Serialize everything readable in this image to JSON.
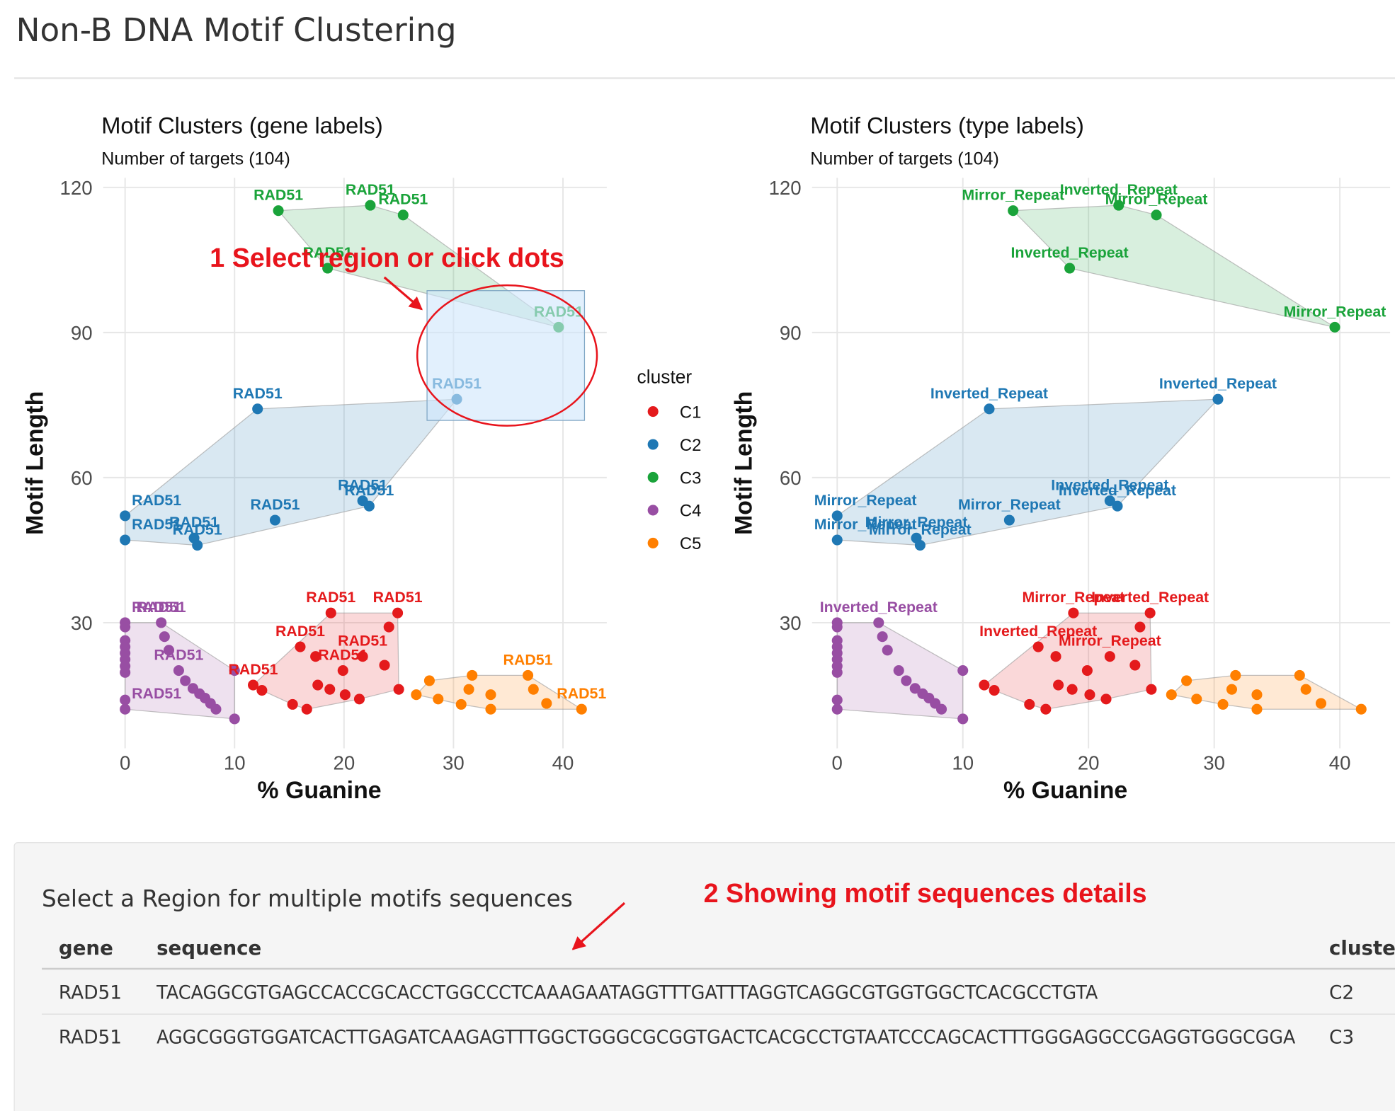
{
  "title": "Non-B DNA Motif Clustering",
  "chart_data": [
    {
      "type": "scatter",
      "title": "Motif Clusters (gene labels)",
      "subtitle": "Number of targets (104)",
      "xlabel": "% Guanine",
      "ylabel": "Motif Length",
      "xlim": [
        -2,
        44
      ],
      "ylim": [
        4,
        122
      ],
      "xticks": [
        0,
        10,
        20,
        30,
        40
      ],
      "yticks": [
        30,
        60,
        90,
        120
      ],
      "grid": true,
      "hull": true,
      "legend_title": "cluster",
      "series": [
        {
          "name": "C1",
          "color": "#e41a1c",
          "x": [
            11.7,
            12.5,
            15.3,
            16.6,
            16.0,
            17.4,
            17.6,
            18.7,
            18.8,
            19.9,
            20.1,
            21.4,
            21.7,
            23.7,
            24.1,
            24.9,
            25.0
          ],
          "values": [
            17.1,
            16.0,
            13.1,
            12.1,
            25.0,
            23.0,
            17.1,
            16.2,
            32.0,
            20.1,
            15.1,
            14.2,
            23.0,
            21.2,
            29.1,
            32.0,
            16.2
          ],
          "labels": [
            "RAD51",
            null,
            null,
            null,
            "RAD51",
            null,
            null,
            null,
            "RAD51",
            "RAD51",
            null,
            null,
            "RAD51",
            null,
            null,
            "RAD51",
            null
          ]
        },
        {
          "name": "C2",
          "color": "#1f78b4",
          "x": [
            12.1,
            30.3,
            0,
            0,
            6.3,
            6.6,
            13.7,
            21.7,
            22.3
          ],
          "values": [
            74.2,
            76.2,
            52.1,
            47.1,
            47.5,
            46.0,
            51.2,
            55.2,
            54.1
          ],
          "labels": [
            "RAD51",
            "RAD51",
            "RAD51",
            "RAD51",
            "RAD51",
            "RAD51",
            "RAD51",
            "RAD51",
            "RAD51"
          ]
        },
        {
          "name": "C3",
          "color": "#1aa33a",
          "x": [
            14.0,
            22.4,
            25.4,
            18.5,
            39.6
          ],
          "values": [
            115.2,
            116.3,
            114.3,
            103.3,
            91.1
          ],
          "labels": [
            "RAD51",
            "RAD51",
            "RAD51",
            "RAD51",
            "RAD51"
          ]
        },
        {
          "name": "C4",
          "color": "#984ea3",
          "x": [
            0,
            0,
            0,
            0,
            0,
            0,
            0,
            0,
            0,
            0,
            3.3,
            3.6,
            4.0,
            4.9,
            5.5,
            6.2,
            6.8,
            7.3,
            7.8,
            8.3,
            10.0,
            10.0
          ],
          "values": [
            30,
            29.1,
            26.3,
            25.0,
            23.7,
            22.4,
            21.0,
            19.7,
            14.0,
            12.1,
            30,
            27.1,
            24.3,
            20.1,
            18.0,
            16.4,
            15.3,
            14.4,
            13.3,
            12.1,
            20.1,
            10.1
          ],
          "labels": [
            "RAD51",
            null,
            null,
            null,
            null,
            null,
            null,
            null,
            null,
            "RAD51",
            "RAD51",
            null,
            null,
            "RAD51",
            null,
            null,
            null,
            null,
            null,
            null,
            null,
            null
          ]
        },
        {
          "name": "C5",
          "color": "#ff7f00",
          "x": [
            26.6,
            27.8,
            28.6,
            30.7,
            31.4,
            31.7,
            33.4,
            33.4,
            36.8,
            37.3,
            38.5,
            41.7
          ],
          "values": [
            15.1,
            18.0,
            14.2,
            13.1,
            16.2,
            19.1,
            15.1,
            12.1,
            19.1,
            16.2,
            13.3,
            12.1
          ],
          "labels": [
            null,
            null,
            null,
            null,
            null,
            null,
            null,
            null,
            "RAD51",
            null,
            null,
            "RAD51"
          ]
        }
      ]
    },
    {
      "type": "scatter",
      "title": "Motif Clusters (type labels)",
      "subtitle": "Number of targets (104)",
      "xlabel": "% Guanine",
      "ylabel": "Motif Length",
      "xlim": [
        -2,
        44
      ],
      "ylim": [
        4,
        122
      ],
      "xticks": [
        0,
        10,
        20,
        30,
        40
      ],
      "yticks": [
        30,
        60,
        90,
        120
      ],
      "grid": true,
      "hull": true,
      "series": [
        {
          "name": "C1",
          "color": "#e41a1c",
          "x": [
            11.7,
            12.5,
            15.3,
            16.6,
            16.0,
            17.4,
            17.6,
            18.7,
            18.8,
            19.9,
            20.1,
            21.4,
            21.7,
            23.7,
            24.1,
            24.9,
            25.0
          ],
          "values": [
            17.1,
            16.0,
            13.1,
            12.1,
            25.0,
            23.0,
            17.1,
            16.2,
            32.0,
            20.1,
            15.1,
            14.2,
            23.0,
            21.2,
            29.1,
            32.0,
            16.2
          ],
          "labels": [
            null,
            null,
            null,
            null,
            "Inverted_Repeat",
            null,
            null,
            null,
            "Mirror_Repeat",
            null,
            null,
            null,
            "Mirror_Repeat",
            null,
            null,
            "Inverted_Repeat",
            null
          ]
        },
        {
          "name": "C2",
          "color": "#1f78b4",
          "x": [
            12.1,
            30.3,
            0,
            0,
            6.3,
            6.6,
            13.7,
            21.7,
            22.3
          ],
          "values": [
            74.2,
            76.2,
            52.1,
            47.1,
            47.5,
            46.0,
            51.2,
            55.2,
            54.1
          ],
          "labels": [
            "Inverted_Repeat",
            "Inverted_Repeat",
            "Mirror_Repeat",
            "Mirror_Repeat",
            "Mirror_Repeat",
            "Mirror_Repeat",
            "Mirror_Repeat",
            "Inverted_Repeat",
            "Inverted_Repeat"
          ]
        },
        {
          "name": "C3",
          "color": "#1aa33a",
          "x": [
            14.0,
            22.4,
            25.4,
            18.5,
            39.6
          ],
          "values": [
            115.2,
            116.3,
            114.3,
            103.3,
            91.1
          ],
          "labels": [
            "Mirror_Repeat",
            "Inverted_Repeat",
            "Mirror_Repeat",
            "Inverted_Repeat",
            "Mirror_Repeat"
          ]
        },
        {
          "name": "C4",
          "color": "#984ea3",
          "x": [
            0,
            0,
            0,
            0,
            0,
            0,
            0,
            0,
            0,
            0,
            3.3,
            3.6,
            4.0,
            4.9,
            5.5,
            6.2,
            6.8,
            7.3,
            7.8,
            8.3,
            10.0,
            10.0
          ],
          "values": [
            30,
            29.1,
            26.3,
            25.0,
            23.7,
            22.4,
            21.0,
            19.7,
            14.0,
            12.1,
            30,
            27.1,
            24.3,
            20.1,
            18.0,
            16.4,
            15.3,
            14.4,
            13.3,
            12.1,
            20.1,
            10.1
          ],
          "labels": [
            null,
            null,
            null,
            null,
            null,
            null,
            null,
            null,
            null,
            null,
            "Inverted_Repeat",
            null,
            null,
            null,
            null,
            null,
            null,
            null,
            null,
            null,
            null,
            null
          ]
        },
        {
          "name": "C5",
          "color": "#ff7f00",
          "x": [
            26.6,
            27.8,
            28.6,
            30.7,
            31.4,
            31.7,
            33.4,
            33.4,
            36.8,
            37.3,
            38.5,
            41.7
          ],
          "values": [
            15.1,
            18.0,
            14.2,
            13.1,
            16.2,
            19.1,
            15.1,
            12.1,
            19.1,
            16.2,
            13.3,
            12.1
          ],
          "labels": [
            null,
            null,
            null,
            null,
            null,
            null,
            null,
            null,
            null,
            null,
            null,
            null
          ]
        }
      ]
    }
  ],
  "annotations": [
    "1 Select region or click dots",
    "2 Showing motif sequences details"
  ],
  "table": {
    "title": "Select a Region for multiple motifs sequences",
    "columns": [
      "gene",
      "sequence",
      "cluster"
    ],
    "rows": [
      [
        "RAD51",
        "TACAGGCGTGAGCCACCGCACCTGGCCCTCAAAGAATAGGTTTGATTTAGGTCAGGCGTGGTGGCTCACGCCTGTA",
        "C2"
      ],
      [
        "RAD51",
        "AGGCGGGTGGATCACTTGAGATCAAGAGTTTGGCTGGGCGCGGTGACTCACGCCTGTAATCCCAGCACTTTGGGAGGCCGAGGTGGGCGGA",
        "C3"
      ]
    ]
  }
}
